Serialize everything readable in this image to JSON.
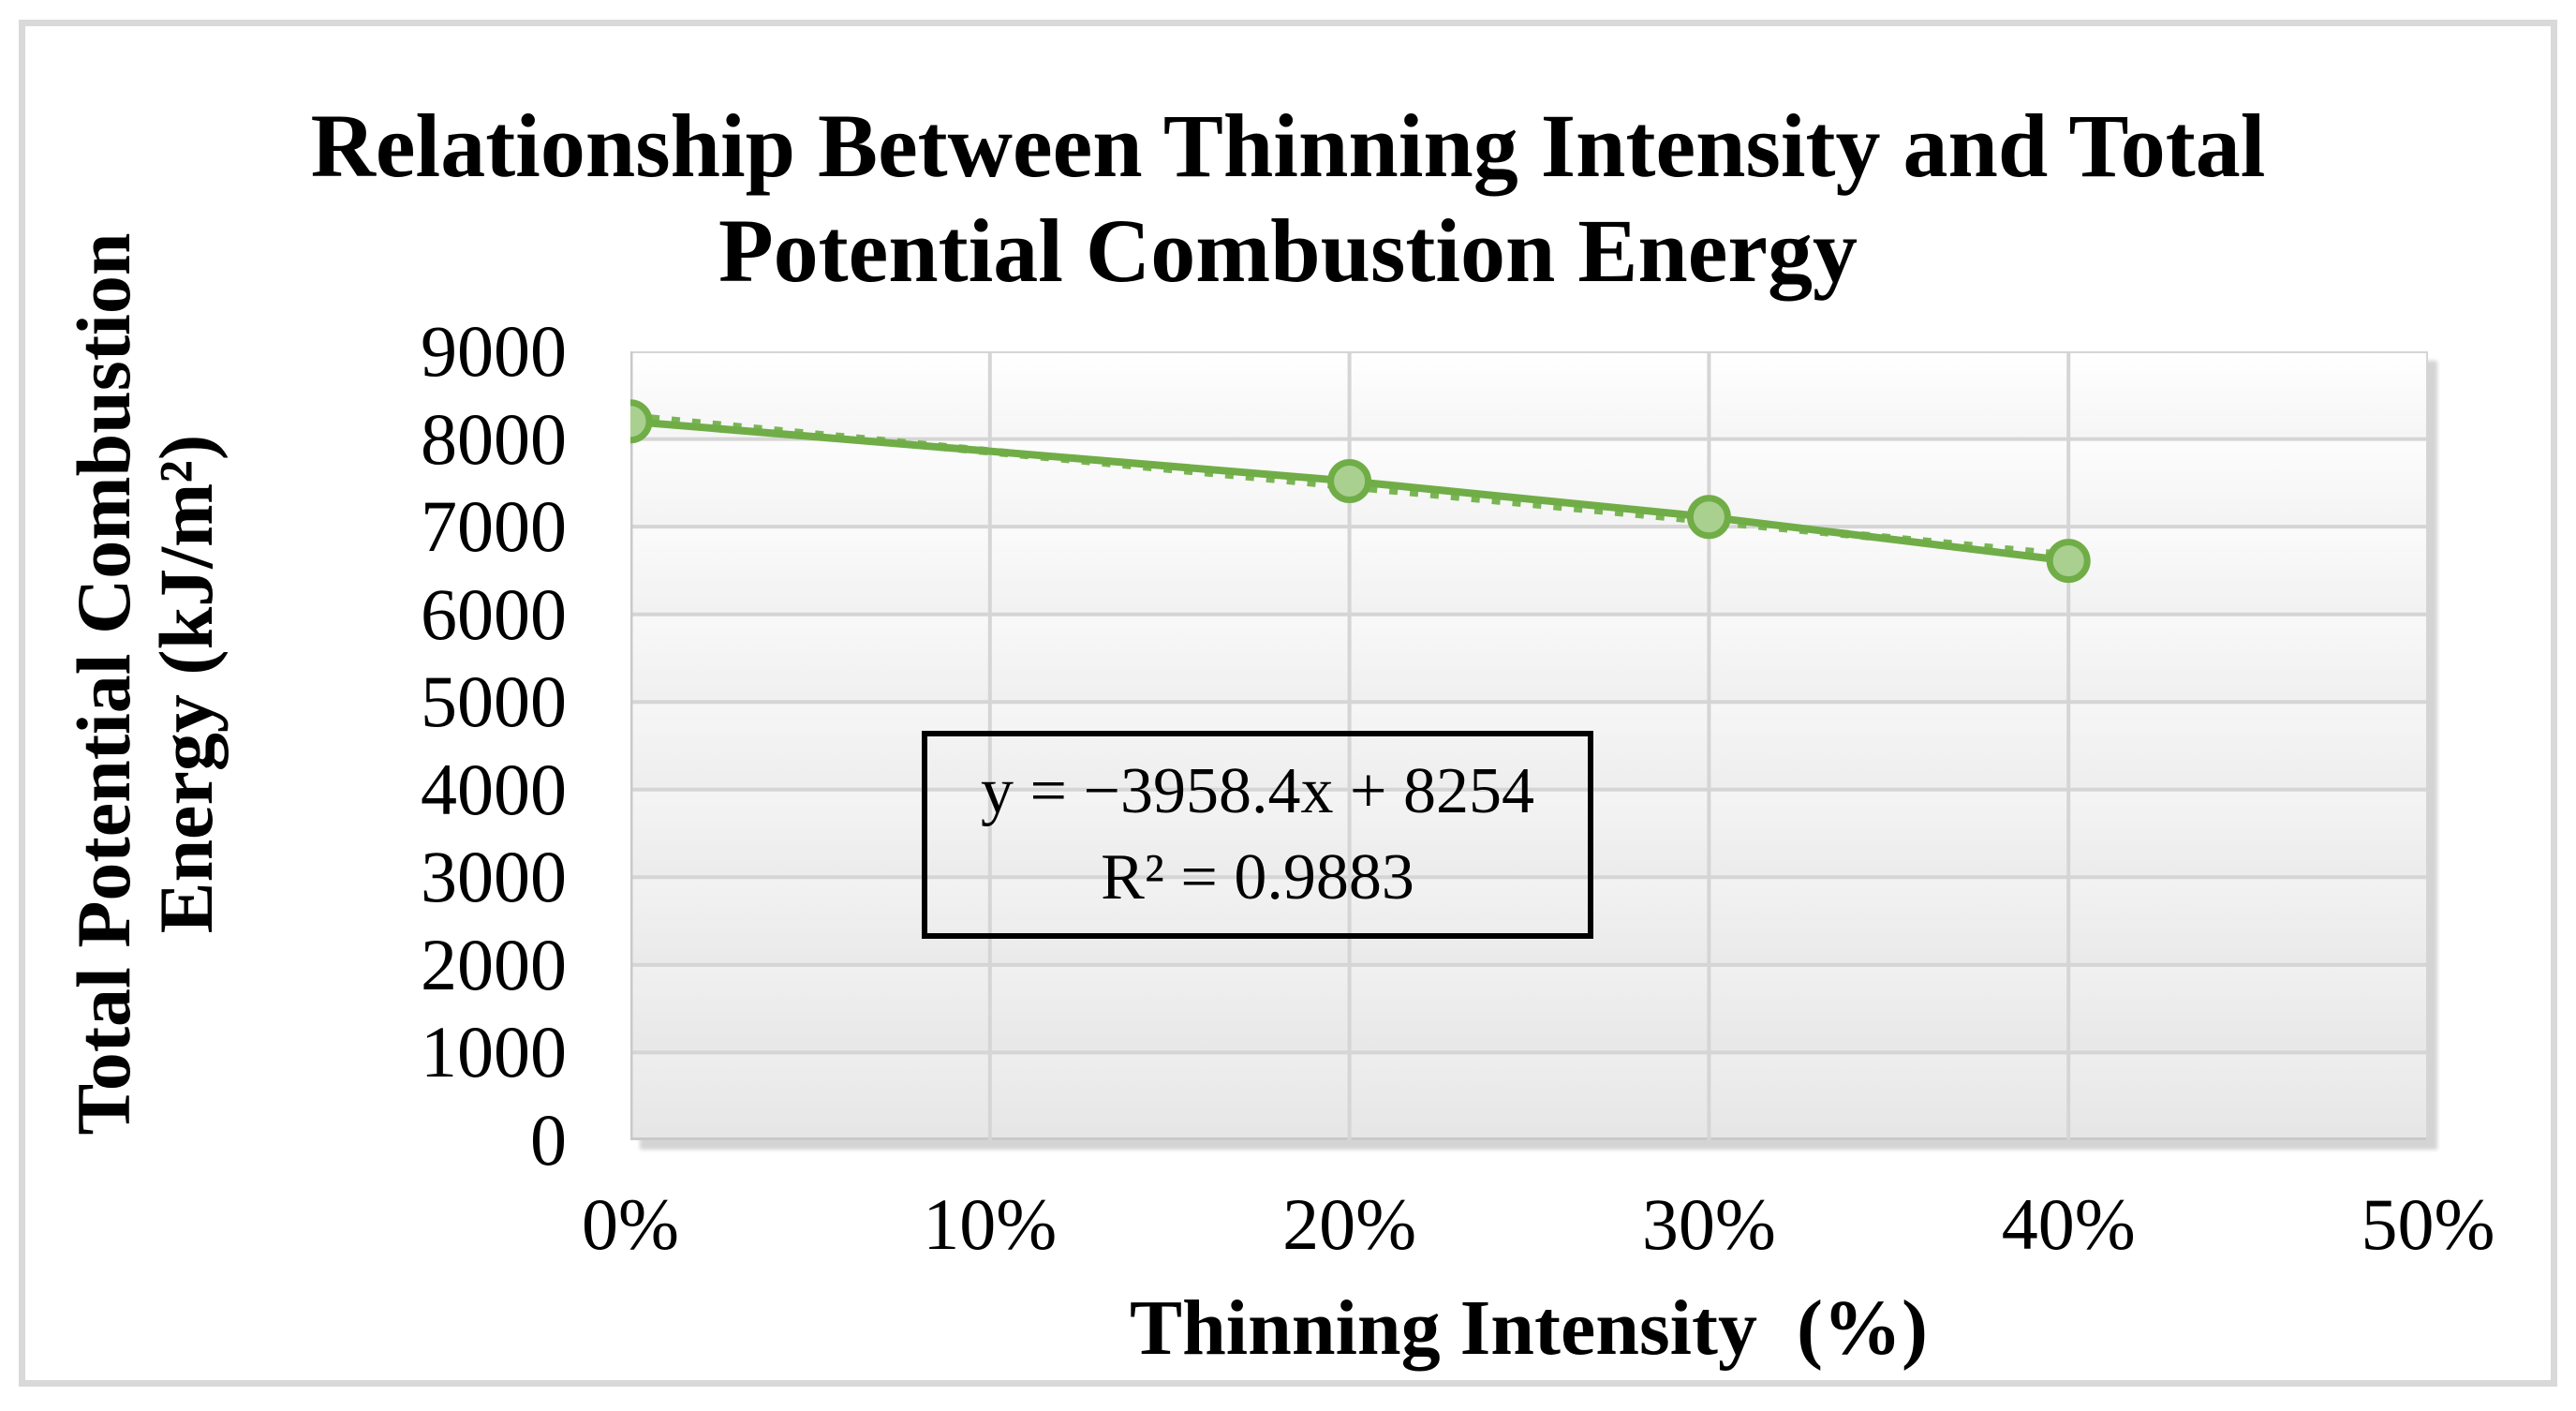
{
  "title": {
    "text": "Relationship Between Thinning Intensity and Total Potential Combustion Energy",
    "lines": [
      "Relationship Between Thinning Intensity and Total",
      "Potential Combustion Energy"
    ]
  },
  "axes": {
    "x_title": "Thinning Intensity  (%)",
    "y_title": "Total Potential Combustion Energy (kJ/m²)",
    "y_title_lines": [
      "Total Potential Combustion",
      "Energy (kJ/m²)"
    ]
  },
  "equation_box": {
    "line1": "y = −3958.4x + 8254",
    "line2": "R² = 0.9883"
  },
  "chart_data": {
    "type": "scatter",
    "title": "Relationship Between Thinning Intensity and Total Potential Combustion Energy",
    "xlabel": "Thinning Intensity (%)",
    "ylabel": "Total Potential Combustion Energy (kJ/m²)",
    "x": [
      0,
      0.2,
      0.3,
      0.4
    ],
    "y": [
      8200,
      7520,
      7110,
      6610
    ],
    "xlim": [
      0,
      0.5
    ],
    "ylim": [
      0,
      9000
    ],
    "x_ticks": [
      0,
      0.1,
      0.2,
      0.3,
      0.4,
      0.5
    ],
    "x_tick_labels": [
      "0%",
      "10%",
      "20%",
      "30%",
      "40%",
      "50%"
    ],
    "y_tick_step": 1000,
    "grid": true,
    "legend": false,
    "trendline": {
      "slope": -3958.4,
      "intercept": 8254,
      "r_squared": 0.9883,
      "x_range": [
        0,
        0.4
      ],
      "style": "dotted"
    },
    "colors": {
      "series_line": "#70AD47",
      "trend_line": "#79B554",
      "marker_fill": "#A9D08E",
      "marker_stroke": "#70AD47",
      "gridline": "#d5d5d5",
      "axis_line": "#c9c9c9"
    }
  }
}
